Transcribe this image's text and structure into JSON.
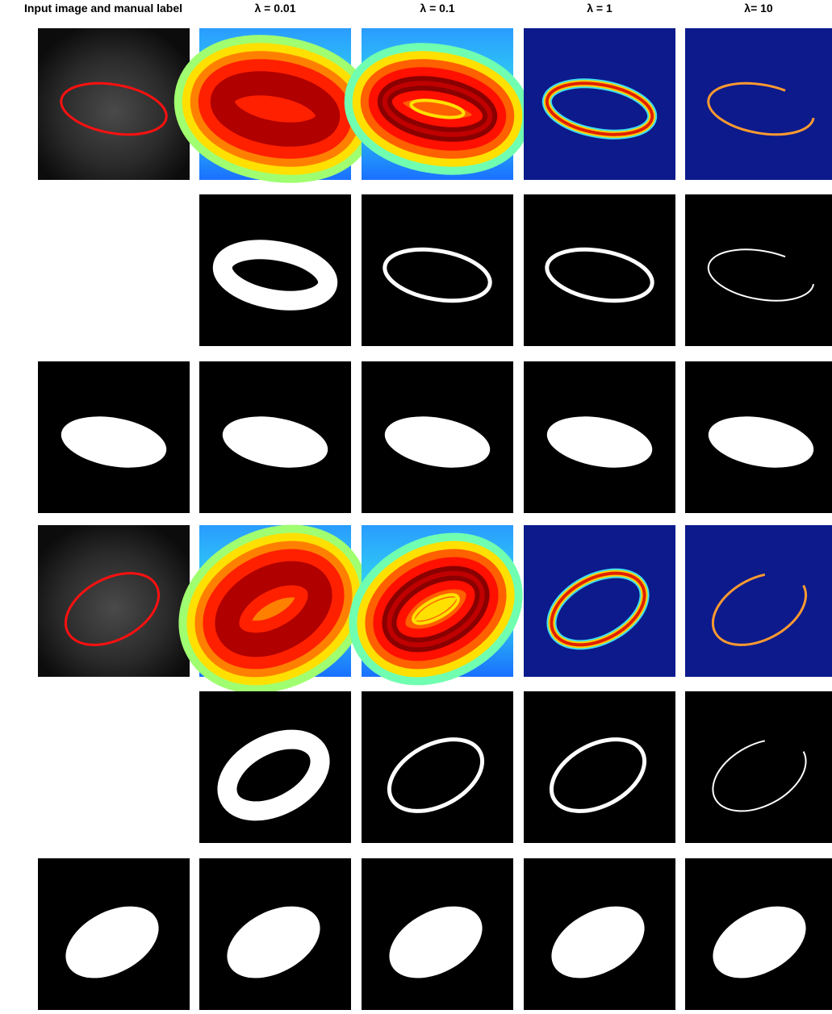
{
  "headers": [
    "Input image and manual label",
    "λ = 0.01",
    "λ = 0.1",
    "λ = 1",
    "λ= 10"
  ]
}
